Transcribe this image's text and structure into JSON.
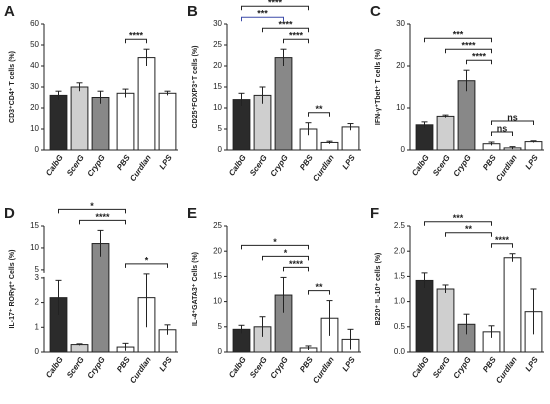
{
  "chart_data": [
    {
      "type": "bar",
      "panel": "A",
      "ylabel": "CD3⁺CD4⁺ T cells (%)",
      "categories": [
        "CalbG",
        "ScerG",
        "CrypG",
        "PBS",
        "Curdlan",
        "LPS"
      ],
      "values": [
        26,
        30,
        25,
        27,
        44,
        27
      ],
      "errors": [
        2,
        2,
        3,
        2,
        4,
        1
      ],
      "colors": [
        "#2b2b2b",
        "#cfcfcf",
        "#888888",
        "#ffffff",
        "#ffffff",
        "#ffffff"
      ],
      "ylim": [
        0,
        60
      ],
      "yticks": [
        0,
        10,
        20,
        30,
        40,
        50,
        60
      ],
      "brackets": [
        {
          "label": "****",
          "between": [
            "PBS",
            "Curdlan"
          ]
        }
      ]
    },
    {
      "type": "bar",
      "panel": "B",
      "ylabel": "CD25⁺FOXP3⁺T cells (%)",
      "categories": [
        "CalbG",
        "ScerG",
        "CrypG",
        "PBS",
        "Curdlan",
        "LPS"
      ],
      "values": [
        12,
        13,
        22,
        5,
        1.8,
        5.5
      ],
      "errors": [
        1.5,
        2,
        2,
        1.5,
        0.3,
        0.8
      ],
      "colors": [
        "#2b2b2b",
        "#cfcfcf",
        "#888888",
        "#ffffff",
        "#ffffff",
        "#ffffff"
      ],
      "ylim": [
        0,
        30
      ],
      "yticks": [
        0,
        5,
        10,
        15,
        20,
        25,
        30
      ],
      "brackets": [
        {
          "label": "****",
          "between": [
            "CalbG",
            "PBS"
          ]
        },
        {
          "label": "***",
          "between": [
            "CalbG",
            "CrypG"
          ],
          "color": "#3b4aa8"
        },
        {
          "label": "****",
          "between": [
            "ScerG",
            "PBS"
          ]
        },
        {
          "label": "****",
          "between": [
            "CrypG",
            "PBS"
          ]
        },
        {
          "label": "**",
          "between": [
            "PBS",
            "Curdlan"
          ]
        }
      ]
    },
    {
      "type": "bar",
      "panel": "C",
      "ylabel": "IFN-γ⁺Tbet⁺ T cells (%)",
      "categories": [
        "CalbG",
        "ScerG",
        "CrypG",
        "PBS",
        "Curdlan",
        "LPS"
      ],
      "values": [
        6,
        8,
        16.5,
        1.5,
        0.5,
        2
      ],
      "errors": [
        0.7,
        0.3,
        2.5,
        0.4,
        0.3,
        0.2
      ],
      "colors": [
        "#2b2b2b",
        "#cfcfcf",
        "#888888",
        "#ffffff",
        "#ffffff",
        "#ffffff"
      ],
      "ylim": [
        0,
        30
      ],
      "yticks": [
        0,
        10,
        20,
        30
      ],
      "brackets": [
        {
          "label": "***",
          "between": [
            "CalbG",
            "PBS"
          ]
        },
        {
          "label": "****",
          "between": [
            "ScerG",
            "PBS"
          ]
        },
        {
          "label": "****",
          "between": [
            "CrypG",
            "PBS"
          ]
        },
        {
          "label": "ns",
          "between": [
            "PBS",
            "LPS"
          ]
        },
        {
          "label": "ns",
          "between": [
            "PBS",
            "Curdlan"
          ]
        }
      ]
    },
    {
      "type": "bar",
      "panel": "D",
      "ylabel": "IL-17⁺ RORγt⁺ Cells (%)",
      "categories": [
        "CalbG",
        "ScerG",
        "CrypG",
        "PBS",
        "Curdlan",
        "LPS"
      ],
      "values": [
        2.2,
        0.3,
        11,
        0.2,
        2.2,
        0.9
      ],
      "errors": [
        0.7,
        0.03,
        3,
        0.15,
        1.2,
        0.2
      ],
      "colors": [
        "#2b2b2b",
        "#cfcfcf",
        "#888888",
        "#ffffff",
        "#ffffff",
        "#ffffff"
      ],
      "ylim": [
        0,
        15
      ],
      "axis_break": [
        3,
        5
      ],
      "yticks": [
        0,
        1,
        2,
        3,
        5,
        10,
        15
      ],
      "brackets": [
        {
          "label": "*",
          "between": [
            "CalbG",
            "PBS"
          ]
        },
        {
          "label": "****",
          "between": [
            "ScerG",
            "PBS"
          ]
        },
        {
          "label": "*",
          "between": [
            "PBS",
            "LPS"
          ]
        }
      ]
    },
    {
      "type": "bar",
      "panel": "E",
      "ylabel": "IL-4⁺GATA3⁺ Cells (%)",
      "categories": [
        "CalbG",
        "ScerG",
        "CrypG",
        "PBS",
        "Curdlan",
        "LPS"
      ],
      "values": [
        4.5,
        5,
        11.3,
        0.8,
        6.7,
        2.5
      ],
      "errors": [
        0.8,
        2,
        3.5,
        0.4,
        3.5,
        2
      ],
      "colors": [
        "#2b2b2b",
        "#cfcfcf",
        "#888888",
        "#ffffff",
        "#ffffff",
        "#ffffff"
      ],
      "ylim": [
        0,
        25
      ],
      "yticks": [
        0,
        5,
        10,
        15,
        20,
        25
      ],
      "brackets": [
        {
          "label": "*",
          "between": [
            "CalbG",
            "PBS"
          ]
        },
        {
          "label": "*",
          "between": [
            "ScerG",
            "PBS"
          ]
        },
        {
          "label": "****",
          "between": [
            "CrypG",
            "PBS"
          ]
        },
        {
          "label": "**",
          "between": [
            "PBS",
            "Curdlan"
          ]
        }
      ]
    },
    {
      "type": "bar",
      "panel": "F",
      "ylabel": "B220⁺ IL-10⁺ cells (%)",
      "categories": [
        "CalbG",
        "ScerG",
        "CrypG",
        "PBS",
        "Curdlan",
        "LPS"
      ],
      "values": [
        1.42,
        1.25,
        0.55,
        0.4,
        1.87,
        0.8
      ],
      "errors": [
        0.15,
        0.08,
        0.2,
        0.12,
        0.08,
        0.45
      ],
      "colors": [
        "#2b2b2b",
        "#cfcfcf",
        "#888888",
        "#ffffff",
        "#ffffff",
        "#ffffff"
      ],
      "ylim": [
        0,
        2.5
      ],
      "yticks": [
        {
          "value": 0,
          "label": "0.0"
        },
        0.5,
        {
          "value": 1,
          "label": "1.0"
        },
        1.5,
        {
          "value": 2,
          "label": "2.0"
        },
        2.5
      ],
      "brackets": [
        {
          "label": "***",
          "between": [
            "CalbG",
            "PBS"
          ]
        },
        {
          "label": "**",
          "between": [
            "ScerG",
            "PBS"
          ]
        },
        {
          "label": "****",
          "between": [
            "PBS",
            "Curdlan"
          ]
        }
      ]
    }
  ]
}
